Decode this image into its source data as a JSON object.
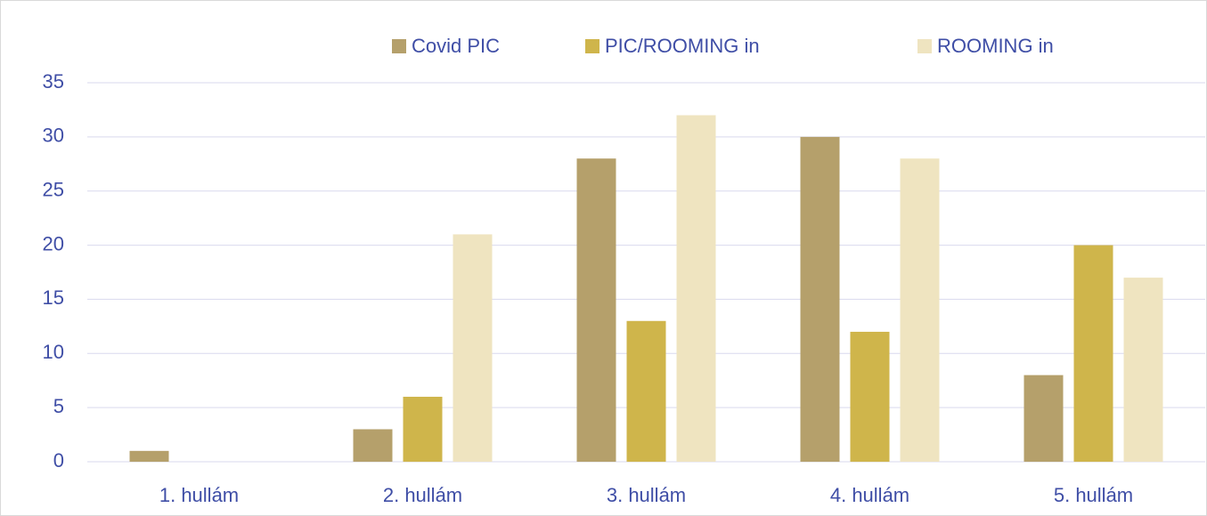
{
  "chart_data": {
    "type": "bar",
    "categories": [
      "1. hullám",
      "2. hullám",
      "3. hullám",
      "4. hullám",
      "5. hullám"
    ],
    "series": [
      {
        "name": "Covid PIC",
        "color": "#b5a06b",
        "values": [
          1,
          3,
          28,
          30,
          8
        ]
      },
      {
        "name": "PIC/ROOMING in",
        "color": "#cfb54b",
        "values": [
          0,
          6,
          13,
          12,
          20
        ]
      },
      {
        "name": "ROOMING in",
        "color": "#efe4c0",
        "values": [
          0,
          21,
          32,
          28,
          17
        ]
      }
    ],
    "ylim": [
      0,
      35
    ],
    "yticks": [
      0,
      5,
      10,
      15,
      20,
      25,
      30,
      35
    ],
    "grid": true,
    "legend": "top"
  }
}
